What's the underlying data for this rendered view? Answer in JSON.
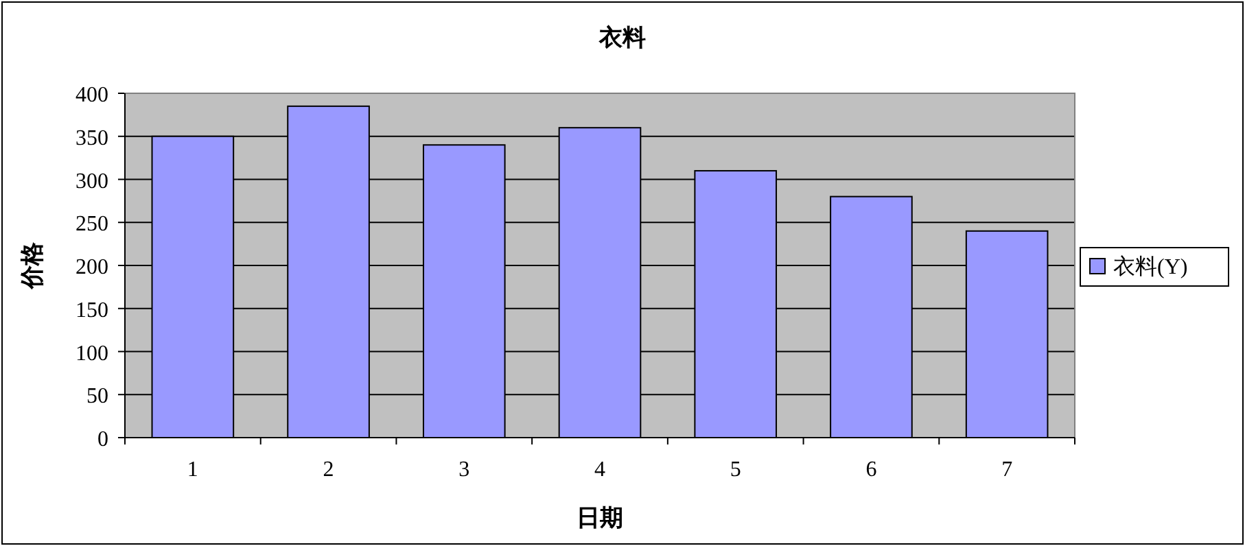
{
  "chart_data": {
    "type": "bar",
    "title": "衣料",
    "xlabel": "日期",
    "ylabel": "价格",
    "categories": [
      "1",
      "2",
      "3",
      "4",
      "5",
      "6",
      "7"
    ],
    "series": [
      {
        "name": "衣料(Y)",
        "color": "#9999ff",
        "values": [
          350,
          385,
          340,
          360,
          310,
          280,
          240
        ]
      }
    ],
    "ylim": [
      0,
      400
    ],
    "yticks": [
      0,
      50,
      100,
      150,
      200,
      250,
      300,
      350,
      400
    ],
    "grid": "y",
    "legend": "right"
  }
}
